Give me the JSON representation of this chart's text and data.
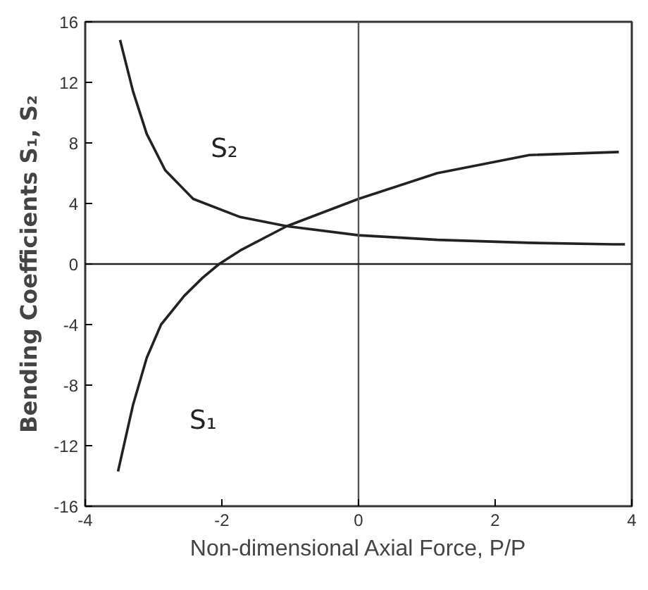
{
  "chart_data": {
    "type": "line",
    "xlabel": "Non-dimensional Axial Force, P/P",
    "ylabel": "Bending Coefficients S₁, S₂",
    "xlim": [
      -4,
      4
    ],
    "xticks": [
      -4,
      -2,
      0,
      2,
      4
    ],
    "ylim": [
      -16,
      16
    ],
    "yticks": [
      -16,
      -12,
      -8,
      -4,
      0,
      4,
      8,
      12,
      16
    ],
    "grid": false,
    "legend": false,
    "line_style": "solid",
    "marker": "none",
    "series": [
      {
        "name": "S₁",
        "color": "#222222",
        "x": [
          -3.52,
          -3.3,
          -3.1,
          -2.89,
          -2.55,
          -2.28,
          -2.04,
          -1.73,
          -1.05,
          0,
          1.15,
          2.5,
          3.81
        ],
        "values": [
          -13.7,
          -9.3,
          -6.2,
          -4.0,
          -2.1,
          -0.9,
          0,
          0.9,
          2.5,
          4.3,
          6.0,
          7.2,
          7.4
        ]
      },
      {
        "name": "S₂",
        "color": "#222222",
        "x": [
          -3.49,
          -3.3,
          -3.1,
          -2.83,
          -2.42,
          -1.73,
          -1.05,
          0,
          1.15,
          2.5,
          3.73,
          3.9
        ],
        "values": [
          14.8,
          11.4,
          8.6,
          6.2,
          4.3,
          3.1,
          2.5,
          1.9,
          1.6,
          1.4,
          1.3,
          1.3
        ]
      }
    ],
    "ref_lines": [
      {
        "axis": "x",
        "value": 0,
        "color": "#555555"
      },
      {
        "axis": "y",
        "value": 0,
        "color": "#222222"
      }
    ]
  }
}
